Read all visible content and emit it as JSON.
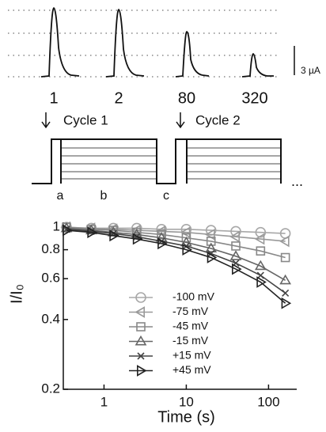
{
  "traces_panel": {
    "labels": [
      "1",
      "2",
      "80",
      "320"
    ],
    "scale_bar": "3 µA"
  },
  "protocol_panel": {
    "cycles": [
      "Cycle 1",
      "Cycle 2"
    ],
    "phases": [
      "a",
      "b",
      "c"
    ],
    "continuation": "..."
  },
  "chart_data": {
    "type": "line",
    "xlabel": "Time (s)",
    "ylabel": "I/I₀",
    "log_x": true,
    "log_y": true,
    "x": [
      0.35,
      0.7,
      1.3,
      2.5,
      5,
      10,
      20,
      40,
      80,
      160
    ],
    "xlim": [
      0.32,
      220
    ],
    "xticks": [
      1,
      10,
      100
    ],
    "ylim": [
      0.2,
      1.05
    ],
    "yticks": [
      0.2,
      0.4,
      0.6,
      0.8,
      1
    ],
    "legend": "center-left",
    "series": [
      {
        "name": "-100 mV",
        "color": "#a8a8a8",
        "marker": "circle",
        "values": [
          1,
          0.99,
          0.99,
          0.99,
          0.98,
          0.98,
          0.97,
          0.96,
          0.95,
          0.94
        ]
      },
      {
        "name": "-75 mV",
        "color": "#999999",
        "marker": "triangle-left",
        "values": [
          1,
          0.99,
          0.98,
          0.97,
          0.96,
          0.95,
          0.93,
          0.91,
          0.89,
          0.87
        ]
      },
      {
        "name": "-45 mV",
        "color": "#888888",
        "marker": "square",
        "values": [
          1,
          0.98,
          0.97,
          0.95,
          0.93,
          0.9,
          0.87,
          0.83,
          0.79,
          0.74
        ]
      },
      {
        "name": "-15 mV",
        "color": "#666666",
        "marker": "triangle-up",
        "values": [
          0.99,
          0.97,
          0.95,
          0.93,
          0.9,
          0.86,
          0.81,
          0.75,
          0.68,
          0.59
        ]
      },
      {
        "name": "+15 mV",
        "color": "#444444",
        "marker": "x",
        "values": [
          0.98,
          0.96,
          0.94,
          0.91,
          0.87,
          0.83,
          0.77,
          0.7,
          0.62,
          0.52
        ]
      },
      {
        "name": "+45 mV",
        "color": "#222222",
        "marker": "triangle-right",
        "values": [
          0.97,
          0.95,
          0.92,
          0.89,
          0.85,
          0.8,
          0.74,
          0.66,
          0.58,
          0.47
        ]
      }
    ]
  }
}
